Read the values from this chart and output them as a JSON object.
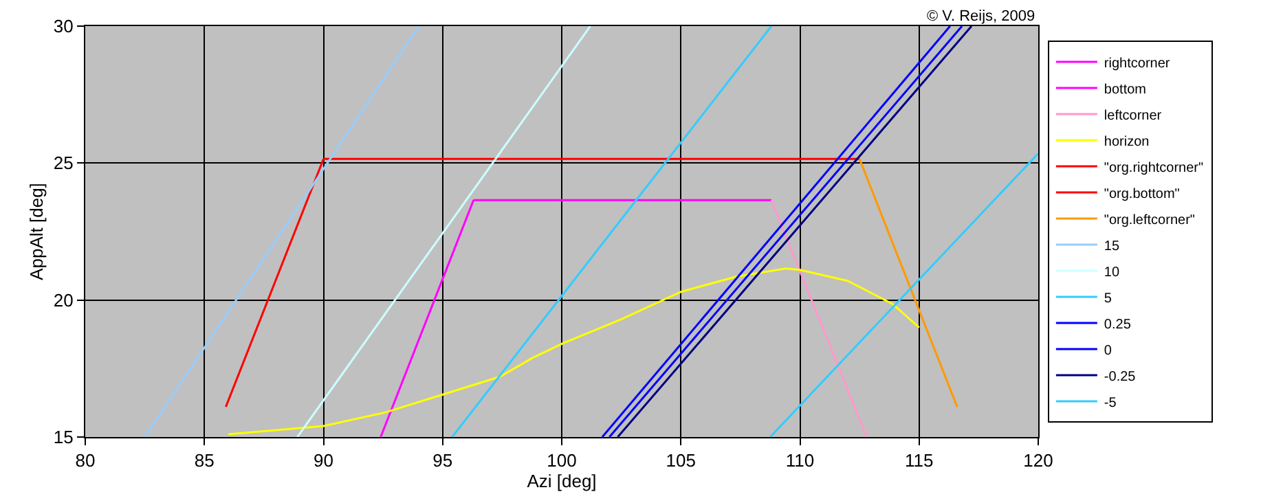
{
  "chart_data": {
    "type": "line",
    "xlabel": "Azi [deg]",
    "ylabel": "AppAlt [deg]",
    "annotations": [
      "© V. Reijs, 2009"
    ],
    "xlim": [
      80,
      120
    ],
    "xticks": [
      80,
      85,
      90,
      95,
      100,
      105,
      110,
      115,
      120
    ],
    "ylim": [
      15,
      30
    ],
    "yticks": [
      15,
      20,
      25,
      30
    ],
    "grid": true,
    "legend": "right",
    "marker": "none",
    "line_style": "solid",
    "series": [
      {
        "name": "rightcorner",
        "color": "#ff00ff",
        "x": [
          92.4,
          96.3
        ],
        "values": [
          15.0,
          23.65
        ]
      },
      {
        "name": "bottom",
        "color": "#ff00ff",
        "x": [
          96.3,
          108.8
        ],
        "values": [
          23.65,
          23.65
        ]
      },
      {
        "name": "leftcorner",
        "color": "#ff99cc",
        "x": [
          108.8,
          112.8
        ],
        "values": [
          23.65,
          15.0
        ]
      },
      {
        "name": "horizon",
        "color": "#ffff00",
        "x": [
          86.0,
          90.0,
          92.6,
          95.0,
          97.4,
          98.8,
          100.0,
          102.5,
          105.0,
          107.3,
          109.4,
          110.0,
          112.0,
          113.9,
          115.0
        ],
        "values": [
          15.1,
          15.4,
          15.9,
          16.55,
          17.2,
          17.9,
          18.4,
          19.3,
          20.3,
          20.85,
          21.15,
          21.1,
          20.7,
          19.85,
          19.0
        ]
      },
      {
        "name": "\"org.rightcorner\"",
        "color": "#ff0000",
        "x": [
          85.9,
          90.0
        ],
        "values": [
          16.1,
          25.15
        ]
      },
      {
        "name": "\"org.bottom\"",
        "color": "#ff0000",
        "x": [
          90.0,
          112.5
        ],
        "values": [
          25.15,
          25.15
        ]
      },
      {
        "name": "\"org.leftcorner\"",
        "color": "#ff9900",
        "x": [
          112.5,
          116.6
        ],
        "values": [
          25.15,
          16.1
        ]
      },
      {
        "name": "15",
        "color": "#99ccff",
        "x": [
          82.5,
          94.0
        ],
        "values": [
          15.0,
          30.0
        ]
      },
      {
        "name": "10",
        "color": "#ccffff",
        "x": [
          88.9,
          101.2
        ],
        "values": [
          15.0,
          30.0
        ]
      },
      {
        "name": "5",
        "color": "#33ccff",
        "x": [
          95.4,
          108.8
        ],
        "values": [
          15.0,
          30.0
        ]
      },
      {
        "name": "0.25",
        "color": "#0000ff",
        "x": [
          101.7,
          116.3
        ],
        "values": [
          15.0,
          30.0
        ]
      },
      {
        "name": "0",
        "color": "#0000ff",
        "x": [
          102.0,
          116.8
        ],
        "values": [
          15.0,
          30.0
        ]
      },
      {
        "name": "-0.25",
        "color": "#000080",
        "x": [
          102.35,
          117.2
        ],
        "values": [
          15.0,
          30.0
        ]
      },
      {
        "name": "-5",
        "color": "#33ccff",
        "x": [
          108.75,
          120.0
        ],
        "values": [
          15.0,
          25.35
        ]
      }
    ]
  }
}
